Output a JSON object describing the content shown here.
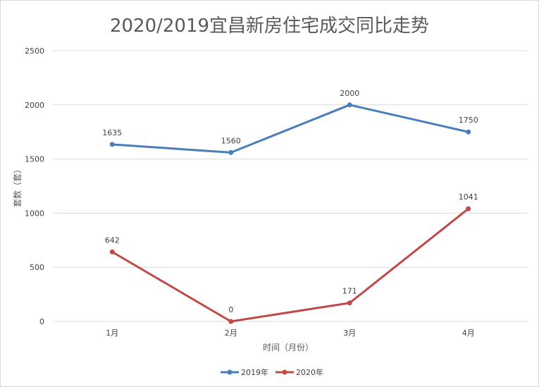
{
  "chart_data": {
    "type": "line",
    "title": "2020/2019宜昌新房住宅成交同比走势",
    "xlabel": "时间（月份）",
    "ylabel": "套数（套）",
    "categories": [
      "1月",
      "2月",
      "3月",
      "4月"
    ],
    "ylim": [
      0,
      2500
    ],
    "yticks": [
      0,
      500,
      1000,
      1500,
      2000,
      2500
    ],
    "grid": true,
    "legend_position": "bottom",
    "series": [
      {
        "name": "2019年",
        "values": [
          1635,
          1560,
          2000,
          1750
        ],
        "color": "#4a7ebb"
      },
      {
        "name": "2020年",
        "values": [
          642,
          0,
          171,
          1041
        ],
        "color": "#be4b48"
      }
    ]
  }
}
